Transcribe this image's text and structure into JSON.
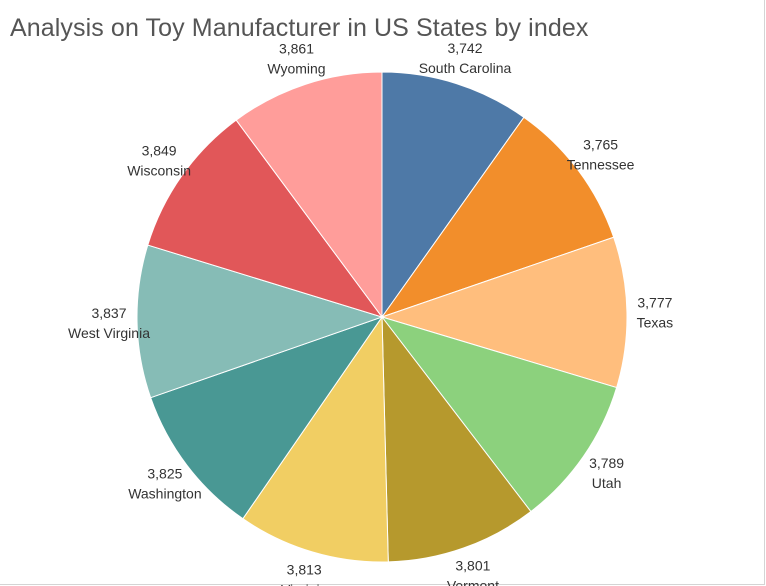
{
  "chart_data": {
    "type": "pie",
    "title": "Analysis on Toy Manufacturer in US States by index",
    "start_angle_deg": 0,
    "direction": "clockwise",
    "slices": [
      {
        "label": "South Carolina",
        "value": 3742,
        "value_text": "3,742",
        "color": "#4e79a7"
      },
      {
        "label": "Tennessee",
        "value": 3765,
        "value_text": "3,765",
        "color": "#f28e2b"
      },
      {
        "label": "Texas",
        "value": 3777,
        "value_text": "3,777",
        "color": "#ffbe7d"
      },
      {
        "label": "Utah",
        "value": 3789,
        "value_text": "3,789",
        "color": "#8cd17d"
      },
      {
        "label": "Vermont",
        "value": 3801,
        "value_text": "3,801",
        "color": "#b6992d"
      },
      {
        "label": "Virginia",
        "value": 3813,
        "value_text": "3,813",
        "color": "#f1ce63"
      },
      {
        "label": "Washington",
        "value": 3825,
        "value_text": "3,825",
        "color": "#499894"
      },
      {
        "label": "West Virginia",
        "value": 3837,
        "value_text": "3,837",
        "color": "#86bcb6"
      },
      {
        "label": "Wisconsin",
        "value": 3849,
        "value_text": "3,849",
        "color": "#e15759"
      },
      {
        "label": "Wyoming",
        "value": 3861,
        "value_text": "3,861",
        "color": "#ff9d9a"
      }
    ]
  }
}
